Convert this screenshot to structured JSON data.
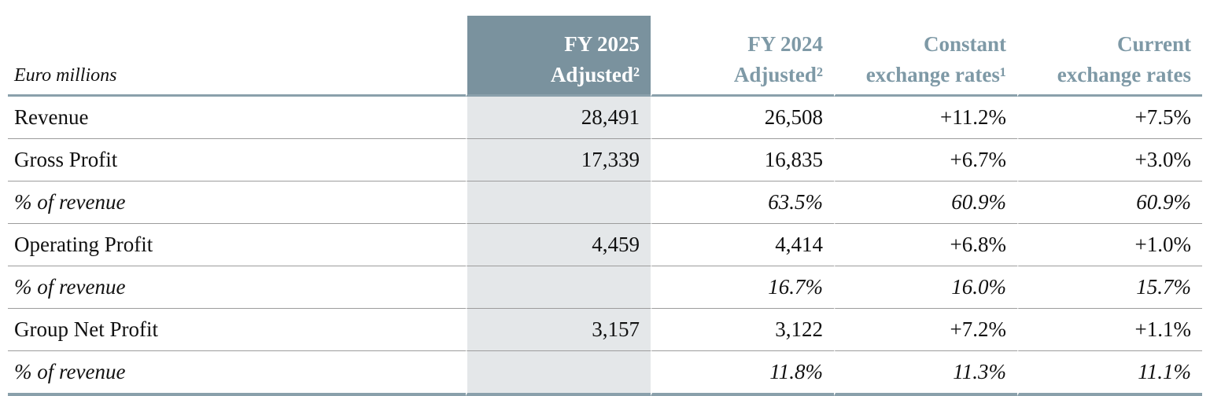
{
  "table": {
    "unit_label": "Euro millions",
    "columns": [
      {
        "id": "fy2025",
        "line1": "FY 2025",
        "line2": "Adjusted²",
        "highlight": true
      },
      {
        "id": "fy2024",
        "line1": "FY 2024",
        "line2": "Adjusted²",
        "highlight": false
      },
      {
        "id": "constant",
        "line1": "Constant",
        "line2": "exchange rates¹",
        "highlight": false
      },
      {
        "id": "current",
        "line1": "Current",
        "line2": "exchange rates",
        "highlight": false
      }
    ],
    "rows": [
      {
        "label": "Revenue",
        "italic": false,
        "fy2025": "28,491",
        "fy2024": "26,508",
        "constant": "+11.2%",
        "current": "+7.5%"
      },
      {
        "label": "Gross Profit",
        "italic": false,
        "fy2025": "17,339",
        "fy2024": "16,835",
        "constant": "+6.7%",
        "current": "+3.0%"
      },
      {
        "label": "% of revenue",
        "italic": true,
        "fy2025": "",
        "fy2024": "63.5%",
        "constant": "60.9%",
        "current": "60.9%"
      },
      {
        "label": "Operating Profit",
        "italic": false,
        "fy2025": "4,459",
        "fy2024": "4,414",
        "constant": "+6.8%",
        "current": "+1.0%"
      },
      {
        "label": "% of revenue",
        "italic": true,
        "fy2025": "",
        "fy2024": "16.7%",
        "constant": "16.0%",
        "current": "15.7%"
      },
      {
        "label": "Group Net Profit",
        "italic": false,
        "fy2025": "3,157",
        "fy2024": "3,122",
        "constant": "+7.2%",
        "current": "+1.1%"
      },
      {
        "label": "% of revenue",
        "italic": true,
        "fy2025": "",
        "fy2024": "11.8%",
        "constant": "11.3%",
        "current": "11.1%"
      }
    ]
  },
  "colors": {
    "header-bg": "#7a929e",
    "header-text": "#7e99a6",
    "highlight-body-bg": "#e4e7e9",
    "accent-border": "#8aa0ab",
    "row-border": "#9c9c9c",
    "text": "#111111"
  },
  "chart_data": {
    "type": "table",
    "title": "Financial results summary (Euro millions)",
    "columns": [
      "Euro millions",
      "FY 2025 Adjusted²",
      "FY 2024 Adjusted²",
      "Constant exchange rates¹",
      "Current exchange rates"
    ],
    "rows": [
      [
        "Revenue",
        "28,491",
        "26,508",
        "+11.2%",
        "+7.5%"
      ],
      [
        "Gross Profit",
        "17,339",
        "16,835",
        "+6.7%",
        "+3.0%"
      ],
      [
        "% of revenue",
        "",
        "63.5%",
        "60.9%",
        "60.9%"
      ],
      [
        "Operating Profit",
        "4,459",
        "4,414",
        "+6.8%",
        "+1.0%"
      ],
      [
        "% of revenue",
        "",
        "16.7%",
        "16.0%",
        "15.7%"
      ],
      [
        "Group Net Profit",
        "3,157",
        "3,122",
        "+7.2%",
        "+1.1%"
      ],
      [
        "% of revenue",
        "",
        "11.8%",
        "11.3%",
        "11.1%"
      ]
    ]
  }
}
